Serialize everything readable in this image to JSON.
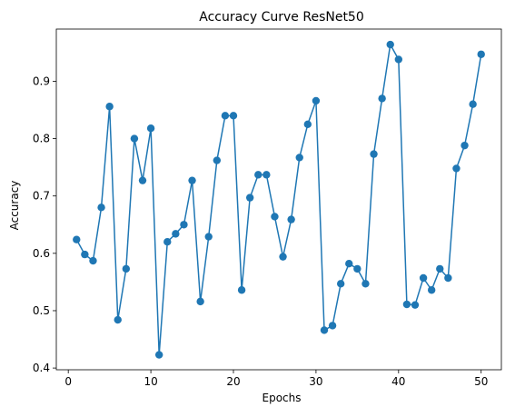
{
  "chart_data": {
    "type": "line",
    "title": "Accuracy Curve ResNet50",
    "xlabel": "Epochs",
    "ylabel": "Accuracy",
    "xlim": [
      -1.45,
      52.45
    ],
    "ylim": [
      0.397,
      0.991
    ],
    "xticks": [
      0,
      10,
      20,
      30,
      40,
      50
    ],
    "yticks": [
      0.4,
      0.5,
      0.6,
      0.7,
      0.8,
      0.9
    ],
    "ytick_labels": [
      "0.4",
      "0.5",
      "0.6",
      "0.7",
      "0.8",
      "0.9"
    ],
    "grid": false,
    "marker": "circle",
    "series": [
      {
        "color": "#1f77b4",
        "x": [
          1,
          2,
          3,
          4,
          5,
          6,
          7,
          8,
          9,
          10,
          11,
          12,
          13,
          14,
          15,
          16,
          17,
          18,
          19,
          20,
          21,
          22,
          23,
          24,
          25,
          26,
          27,
          28,
          29,
          30,
          31,
          32,
          33,
          34,
          35,
          36,
          37,
          38,
          39,
          40,
          41,
          42,
          43,
          44,
          45,
          46,
          47,
          48,
          49,
          50
        ],
        "values": [
          0.624,
          0.598,
          0.587,
          0.68,
          0.856,
          0.484,
          0.573,
          0.8,
          0.727,
          0.818,
          0.423,
          0.62,
          0.634,
          0.65,
          0.727,
          0.516,
          0.629,
          0.762,
          0.84,
          0.84,
          0.536,
          0.697,
          0.737,
          0.737,
          0.664,
          0.594,
          0.659,
          0.767,
          0.825,
          0.866,
          0.466,
          0.474,
          0.547,
          0.582,
          0.573,
          0.547,
          0.773,
          0.87,
          0.964,
          0.938,
          0.511,
          0.51,
          0.557,
          0.536,
          0.573,
          0.557,
          0.748,
          0.788,
          0.86,
          0.947
        ]
      }
    ]
  }
}
